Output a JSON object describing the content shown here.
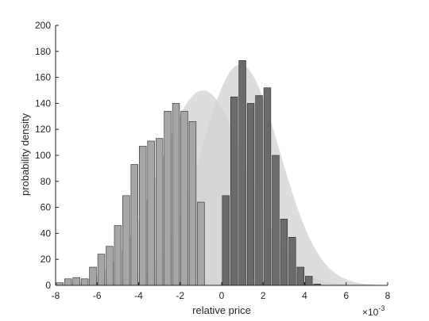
{
  "chart_data": {
    "type": "bar",
    "title": "",
    "xlabel": "relative price",
    "ylabel": "probability density",
    "x_multiplier": "×10",
    "x_multiplier_exponent": "-3",
    "xlim": [
      -8,
      8
    ],
    "ylim": [
      0,
      200
    ],
    "xticks": [
      -8,
      -6,
      -4,
      -2,
      0,
      2,
      4,
      6,
      8
    ],
    "yticks": [
      0,
      20,
      40,
      60,
      80,
      100,
      120,
      140,
      160,
      180,
      200
    ],
    "bin_width": 0.4,
    "grid": false,
    "legend": "none",
    "colors": {
      "light_bars": "#a6a6a6",
      "dark_bars": "#6b6b6b",
      "curve_fill": "#d4d4d4",
      "bar_edge": "#262626",
      "axis": "#262626"
    },
    "series": [
      {
        "color_key": "light_bars",
        "x": [
          -7.8,
          -7.4,
          -7.0,
          -6.6,
          -6.2,
          -5.8,
          -5.4,
          -5.0,
          -4.6,
          -4.2,
          -3.8,
          -3.4,
          -3.0,
          -2.6,
          -2.2,
          -1.8,
          -1.4,
          -1.0,
          -0.6,
          -0.2
        ],
        "values": [
          2,
          5,
          6,
          5,
          14,
          24,
          30,
          46,
          69,
          93,
          107,
          111,
          113,
          134,
          140,
          134,
          126,
          64,
          0,
          0
        ]
      },
      {
        "color_key": "dark_bars",
        "x": [
          0.2,
          0.6,
          1.0,
          1.4,
          1.8,
          2.2,
          2.6,
          3.0,
          3.4,
          3.8,
          4.2,
          4.6,
          5.0,
          5.4,
          5.8
        ],
        "values": [
          69,
          145,
          173,
          140,
          146,
          152,
          100,
          51,
          37,
          14,
          7,
          1,
          0,
          0,
          0
        ]
      }
    ],
    "density_curves": [
      {
        "color_key": "curve_fill",
        "mean": -0.9,
        "sd": 2.1,
        "peak": 150
      },
      {
        "color_key": "curve_fill",
        "mean": 0.9,
        "sd": 1.9,
        "peak": 170
      }
    ]
  }
}
